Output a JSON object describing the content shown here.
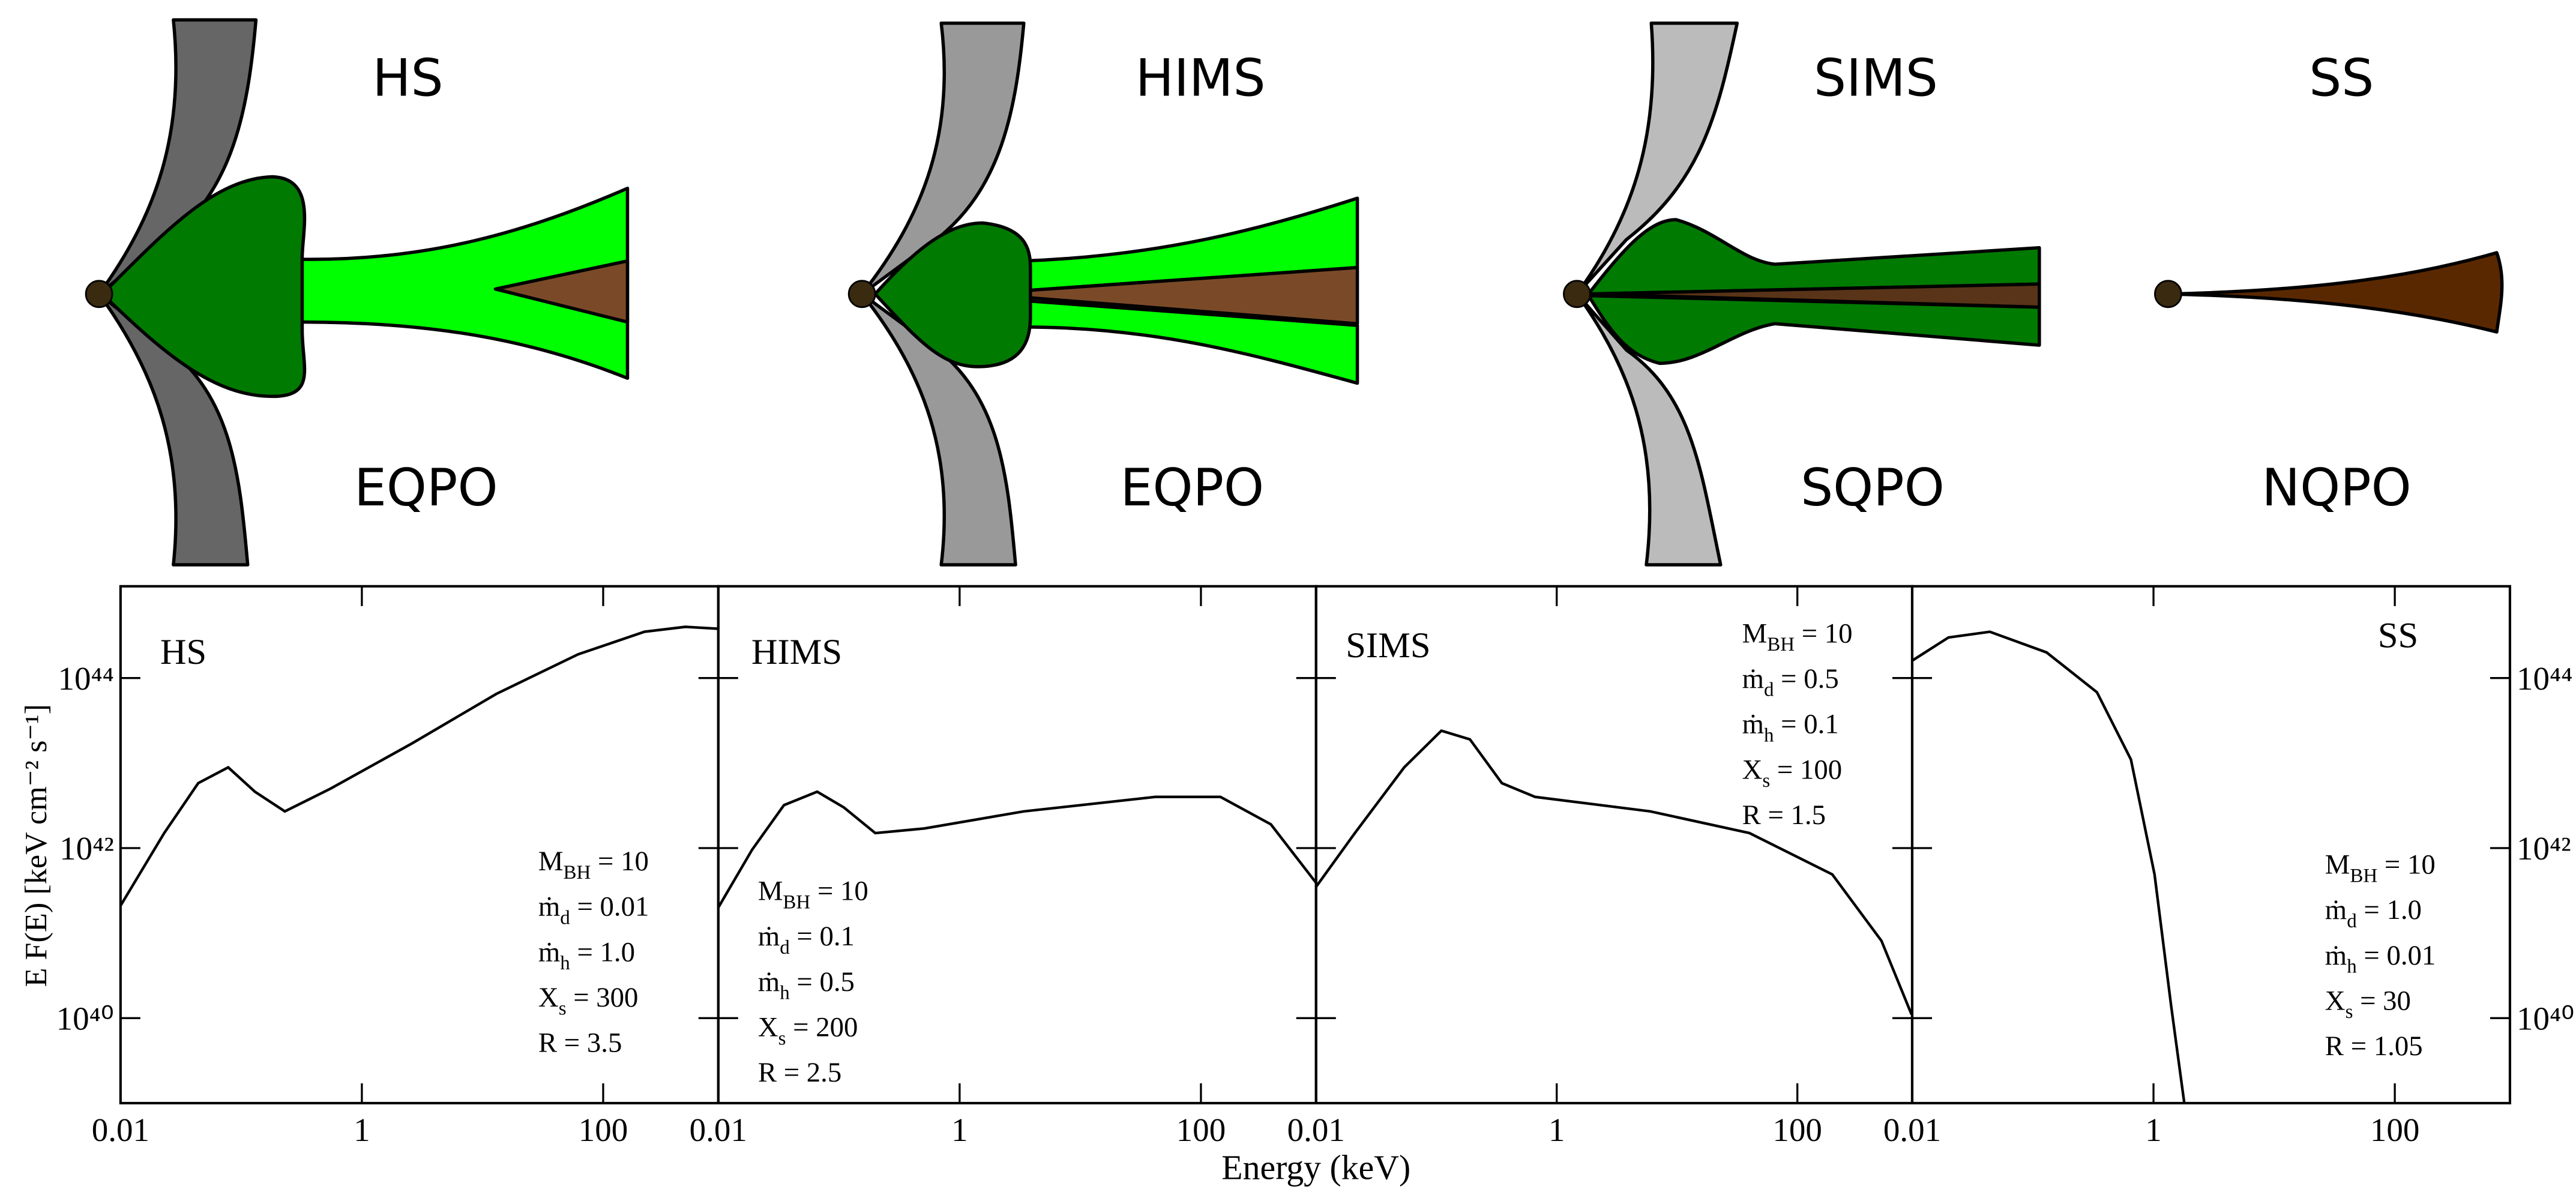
{
  "diagram": {
    "states": [
      {
        "name": "HS",
        "qpo": "EQPO"
      },
      {
        "name": "HIMS",
        "qpo": "EQPO"
      },
      {
        "name": "SIMS",
        "qpo": "SQPO"
      },
      {
        "name": "SS",
        "qpo": "NQPO"
      }
    ]
  },
  "figure": {
    "xlabel": "Energy (keV)",
    "ylabel": "E F(E) [keV cm⁻² s⁻¹]"
  },
  "chart_data": [
    {
      "type": "line",
      "title": "HS",
      "log_x": true,
      "log_y": true,
      "ytick_labels": "left",
      "x": [
        0.01,
        0.023,
        0.044,
        0.078,
        0.13,
        0.23,
        0.55,
        2.6,
        13,
        62,
        220,
        480,
        900
      ],
      "series": [
        {
          "color": "#000000",
          "values": [
            2.1e+41,
            1.5e+42,
            5.8e+42,
            8.9e+42,
            4.6e+42,
            2.7e+42,
            5e+42,
            1.7e+43,
            6.5e+43,
            1.9e+44,
            3.5e+44,
            4e+44,
            3.8e+44
          ]
        }
      ],
      "xlim": [
        0.01,
        900
      ],
      "ylim": [
        1e+39,
        1.2e+45
      ],
      "xticks": [
        0.01,
        1,
        100
      ],
      "yticks": [
        {
          "value": 1e+40,
          "label": "10⁴⁰"
        },
        {
          "value": 1e+42,
          "label": "10⁴²"
        },
        {
          "value": 1e+44,
          "label": "10⁴⁴"
        }
      ],
      "params": [
        {
          "symbol": "M",
          "sub": "BH",
          "rest": " = 10"
        },
        {
          "symbol": "ṁ",
          "sub": "d",
          "rest": " = 0.01"
        },
        {
          "symbol": "ṁ",
          "sub": "h",
          "rest": " = 1.0"
        },
        {
          "symbol": "X",
          "sub": "s",
          "rest": " = 300"
        },
        {
          "symbol": "R",
          "rest": " = 3.5"
        }
      ]
    },
    {
      "type": "line",
      "title": "HIMS",
      "log_x": true,
      "log_y": true,
      "ytick_labels": "none",
      "x": [
        0.01,
        0.019,
        0.035,
        0.066,
        0.11,
        0.2,
        0.51,
        3.4,
        42,
        145,
        380,
        900
      ],
      "series": [
        {
          "color": "#000000",
          "values": [
            2e+41,
            9.5e+41,
            3.2e+42,
            4.6e+42,
            3e+42,
            1.5e+42,
            1.7e+42,
            2.7e+42,
            4e+42,
            4e+42,
            1.9e+42,
            3.9e+41
          ]
        }
      ],
      "xlim": [
        0.01,
        900
      ],
      "ylim": [
        1e+39,
        1.2e+45
      ],
      "xticks": [
        0.01,
        1,
        100
      ],
      "yticks": [
        {
          "value": 1e+40,
          "label": "10⁴⁰"
        },
        {
          "value": 1e+42,
          "label": "10⁴²"
        },
        {
          "value": 1e+44,
          "label": "10⁴⁴"
        }
      ],
      "params": [
        {
          "symbol": "M",
          "sub": "BH",
          "rest": " = 10"
        },
        {
          "symbol": "ṁ",
          "sub": "d",
          "rest": " = 0.1"
        },
        {
          "symbol": "ṁ",
          "sub": "h",
          "rest": " = 0.5"
        },
        {
          "symbol": "X",
          "sub": "s",
          "rest": " = 200"
        },
        {
          "symbol": "R",
          "rest": " = 2.5"
        }
      ]
    },
    {
      "type": "line",
      "title": "SIMS",
      "log_x": true,
      "log_y": true,
      "ytick_labels": "none",
      "x": [
        0.01,
        0.021,
        0.054,
        0.11,
        0.19,
        0.35,
        0.66,
        6.0,
        40,
        195,
        500,
        890
      ],
      "series": [
        {
          "color": "#000000",
          "values": [
            3.5e+41,
            1.5e+42,
            8.9e+42,
            2.4e+43,
            1.9e+43,
            5.8e+42,
            4e+42,
            2.7e+42,
            1.5e+42,
            4.9e+41,
            8.1e+40,
            1.1e+40
          ]
        }
      ],
      "xlim": [
        0.01,
        900
      ],
      "ylim": [
        1e+39,
        1.2e+45
      ],
      "xticks": [
        0.01,
        1,
        100
      ],
      "yticks": [
        {
          "value": 1e+40,
          "label": "10⁴⁰"
        },
        {
          "value": 1e+42,
          "label": "10⁴²"
        },
        {
          "value": 1e+44,
          "label": "10⁴⁴"
        }
      ],
      "params": [
        {
          "symbol": "M",
          "sub": "BH",
          "rest": " = 10"
        },
        {
          "symbol": "ṁ",
          "sub": "d",
          "rest": " = 0.5"
        },
        {
          "symbol": "ṁ",
          "sub": "h",
          "rest": " = 0.1"
        },
        {
          "symbol": "X",
          "sub": "s",
          "rest": " = 100"
        },
        {
          "symbol": "R",
          "rest": " = 1.5"
        }
      ]
    },
    {
      "type": "line",
      "title": "SS",
      "log_x": true,
      "log_y": true,
      "ytick_labels": "right",
      "x": [
        0.01,
        0.02,
        0.044,
        0.13,
        0.34,
        0.65,
        1.02,
        1.4,
        1.8
      ],
      "series": [
        {
          "color": "#000000",
          "values": [
            1.6e+44,
            3e+44,
            3.5e+44,
            2e+44,
            6.8e+43,
            1.1e+43,
            4.9e+41,
            1.4e+40,
            1e+39
          ]
        }
      ],
      "xlim": [
        0.01,
        900
      ],
      "ylim": [
        1e+39,
        1.2e+45
      ],
      "xticks": [
        0.01,
        1,
        100
      ],
      "yticks": [
        {
          "value": 1e+40,
          "label": "10⁴⁰"
        },
        {
          "value": 1e+42,
          "label": "10⁴²"
        },
        {
          "value": 1e+44,
          "label": "10⁴⁴"
        }
      ],
      "params": [
        {
          "symbol": "M",
          "sub": "BH",
          "rest": " = 10"
        },
        {
          "symbol": "ṁ",
          "sub": "d",
          "rest": " = 1.0"
        },
        {
          "symbol": "ṁ",
          "sub": "h",
          "rest": " = 0.01"
        },
        {
          "symbol": "X",
          "sub": "s",
          "rest": " = 30"
        },
        {
          "symbol": "R",
          "rest": " = 1.05"
        }
      ]
    }
  ]
}
